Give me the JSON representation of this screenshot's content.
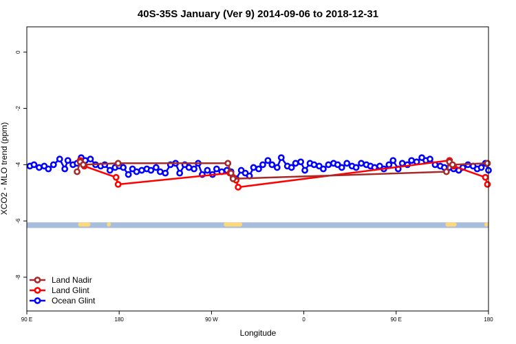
{
  "chart_data": {
    "type": "line",
    "title": "40S-35S January (Ver 9)   2014-09-06 to 2018-12-31",
    "xlabel": "Longitude",
    "ylabel": "XCO2 - MLO trend (ppm)",
    "xlim": [
      90,
      540
    ],
    "ylim": [
      -9.2,
      0.9
    ],
    "x_ticks": [
      {
        "value": 90,
        "label": "90 E"
      },
      {
        "value": 180,
        "label": "180"
      },
      {
        "value": 270,
        "label": "90 W"
      },
      {
        "value": 360,
        "label": "0"
      },
      {
        "value": 450,
        "label": "90 E"
      },
      {
        "value": 540,
        "label": "180"
      }
    ],
    "y_ticks": [
      {
        "value": 0,
        "label": "0"
      },
      {
        "value": -2,
        "label": "-2"
      },
      {
        "value": -4,
        "label": "-4"
      },
      {
        "value": -6,
        "label": "-6"
      },
      {
        "value": -8,
        "label": "-8"
      }
    ],
    "legend_position": "bottom-left",
    "land_strip": {
      "y_range": [
        -6.25,
        -6.05
      ],
      "ocean_color": "#a6bddb",
      "land_color": "#fcd87a",
      "land_segments": [
        [
          140,
          152
        ],
        [
          168,
          172
        ],
        [
          282,
          300
        ],
        [
          498,
          509
        ],
        [
          536,
          540
        ]
      ]
    },
    "series": [
      {
        "name": "Land Nadir",
        "color": "#a52a2a",
        "x": [
          139,
          142,
          145,
          179,
          286,
          289,
          291,
          499,
          502,
          505,
          539
        ],
        "y": [
          -4.25,
          -3.9,
          -4.0,
          -3.95,
          -3.95,
          -4.3,
          -4.5,
          -4.25,
          -3.9,
          -4.0,
          -3.95
        ]
      },
      {
        "name": "Land Glint",
        "color": "#ff0000",
        "x": [
          142,
          146,
          177,
          179,
          288,
          291,
          294,
          296,
          502,
          506,
          537,
          539
        ],
        "y": [
          -3.85,
          -4.05,
          -4.45,
          -4.7,
          -4.3,
          -4.45,
          -4.55,
          -4.8,
          -3.85,
          -4.05,
          -4.45,
          -4.7
        ]
      },
      {
        "name": "Ocean Glint",
        "color": "#0000ff",
        "x": [
          93,
          97,
          102,
          107,
          111,
          116,
          122,
          127,
          130,
          135,
          139,
          143,
          147,
          152,
          157,
          162,
          166,
          171,
          176,
          180,
          184,
          189,
          193,
          197,
          202,
          207,
          211,
          216,
          220,
          225,
          230,
          235,
          239,
          244,
          248,
          253,
          257,
          261,
          266,
          271,
          275,
          280,
          285,
          289,
          294,
          299,
          303,
          307,
          311,
          316,
          320,
          325,
          329,
          334,
          338,
          344,
          348,
          352,
          357,
          361,
          366,
          370,
          375,
          379,
          384,
          389,
          393,
          397,
          402,
          407,
          411,
          416,
          421,
          425,
          429,
          434,
          438,
          443,
          447,
          452,
          456,
          461,
          465,
          470,
          475,
          479,
          483,
          488,
          493,
          497,
          502,
          506,
          511,
          515,
          520,
          525,
          529,
          533,
          537,
          540
        ],
        "y": [
          -4.05,
          -4.0,
          -4.1,
          -4.05,
          -4.15,
          -4.0,
          -3.8,
          -4.15,
          -3.85,
          -4.0,
          -3.95,
          -3.75,
          -3.85,
          -3.8,
          -4.0,
          -4.05,
          -4.0,
          -4.2,
          -4.1,
          -4.05,
          -4.1,
          -4.35,
          -4.15,
          -4.25,
          -4.2,
          -4.15,
          -4.2,
          -4.1,
          -4.25,
          -4.3,
          -4.0,
          -3.95,
          -4.3,
          -4.0,
          -4.1,
          -4.15,
          -3.95,
          -4.35,
          -4.2,
          -4.35,
          -4.15,
          -4.25,
          -4.2,
          -4.25,
          -4.5,
          -4.2,
          -4.3,
          -4.4,
          -4.1,
          -4.15,
          -4.0,
          -3.85,
          -4.0,
          -4.1,
          -3.75,
          -4.05,
          -4.1,
          -3.95,
          -3.9,
          -4.2,
          -3.95,
          -4.0,
          -4.05,
          -4.15,
          -4.0,
          -3.95,
          -4.0,
          -4.1,
          -3.95,
          -4.05,
          -4.1,
          -3.95,
          -4.0,
          -4.05,
          -4.1,
          -4.05,
          -4.15,
          -4.0,
          -3.85,
          -4.15,
          -3.95,
          -4.0,
          -3.85,
          -3.9,
          -3.75,
          -3.85,
          -3.8,
          -4.0,
          -4.05,
          -4.1,
          -4.1,
          -4.15,
          -4.2,
          -4.1,
          -4.0,
          -4.05,
          -4.15,
          -4.1,
          -3.95,
          -4.2
        ]
      }
    ]
  }
}
